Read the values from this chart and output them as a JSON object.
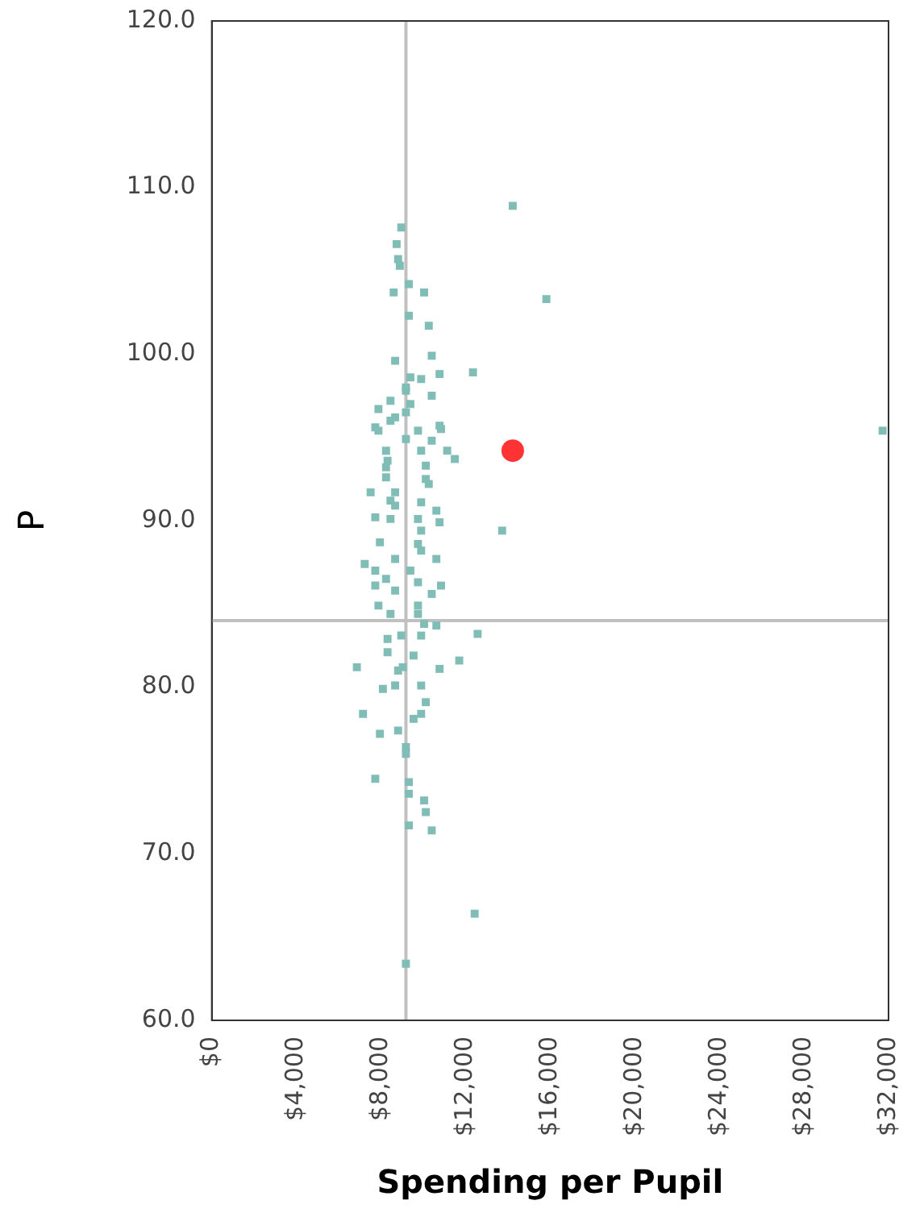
{
  "chart_data": {
    "type": "scatter",
    "xlabel": "Spending per Pupil",
    "ylabel": "P",
    "xlim": [
      0,
      32000
    ],
    "ylim": [
      60,
      120
    ],
    "xticks": [
      {
        "value": 0,
        "label": "$0"
      },
      {
        "value": 4000,
        "label": "$4,000"
      },
      {
        "value": 8000,
        "label": "$8,000"
      },
      {
        "value": 12000,
        "label": "$12,000"
      },
      {
        "value": 16000,
        "label": "$16,000"
      },
      {
        "value": 20000,
        "label": "$20,000"
      },
      {
        "value": 24000,
        "label": "$24,000"
      },
      {
        "value": 28000,
        "label": "$28,000"
      },
      {
        "value": 32000,
        "label": "$32,000"
      }
    ],
    "yticks": [
      {
        "value": 60,
        "label": "60.0"
      },
      {
        "value": 70,
        "label": "70.0"
      },
      {
        "value": 80,
        "label": "80.0"
      },
      {
        "value": 90,
        "label": "90.0"
      },
      {
        "value": 100,
        "label": "100.0"
      },
      {
        "value": 110,
        "label": "110.0"
      },
      {
        "value": 120,
        "label": "120.0"
      }
    ],
    "grid": false,
    "legend": false,
    "ref_lines": [
      {
        "axis": "x",
        "value": 9180,
        "color": "#c0c0c0"
      },
      {
        "axis": "y",
        "value": 84.0,
        "color": "#c0c0c0"
      }
    ],
    "series": [
      {
        "color": "#7fbdb6",
        "marker": "square",
        "x": [
          8960,
          8740,
          8810,
          8890,
          9320,
          8600,
          10040,
          9320,
          10260,
          10400,
          8670,
          12350,
          10770,
          9390,
          9900,
          9180,
          10400,
          9180,
          8450,
          9390,
          7880,
          9180,
          8450,
          10770,
          7730,
          8670,
          7880,
          9750,
          10840,
          9180,
          10400,
          11130,
          8240,
          9900,
          11490,
          8310,
          10120,
          8240,
          10120,
          8240,
          10260,
          8670,
          7510,
          8450,
          9900,
          10620,
          8670,
          7730,
          10770,
          8450,
          9750,
          13730,
          9900,
          7950,
          9750,
          9900,
          7230,
          8670,
          10620,
          7730,
          9390,
          8240,
          9750,
          10840,
          7730,
          8670,
          10400,
          7880,
          9750,
          9750,
          8450,
          10040,
          10620,
          9900,
          8310,
          12570,
          8960,
          8310,
          9540,
          11700,
          6860,
          9030,
          10770,
          8810,
          8090,
          8670,
          9900,
          10120,
          7150,
          9900,
          9540,
          7950,
          8810,
          9180,
          9180,
          7730,
          9320,
          9320,
          10040,
          10120,
          9320,
          10400,
          12430,
          9180,
          14230,
          15820,
          31720
        ],
        "values": [
          107.6,
          106.6,
          105.7,
          105.3,
          104.2,
          103.7,
          103.7,
          102.3,
          101.7,
          99.9,
          99.6,
          98.9,
          98.8,
          98.6,
          98.5,
          98.0,
          97.5,
          97.8,
          97.2,
          97.0,
          96.7,
          96.5,
          96.0,
          95.7,
          95.6,
          96.2,
          95.4,
          95.4,
          95.5,
          94.9,
          94.8,
          94.2,
          94.2,
          94.2,
          93.7,
          93.6,
          93.3,
          93.2,
          92.5,
          92.6,
          92.2,
          91.7,
          91.7,
          91.2,
          91.1,
          90.6,
          90.9,
          90.2,
          89.9,
          90.1,
          90.1,
          89.4,
          89.4,
          88.7,
          88.6,
          88.2,
          87.4,
          87.7,
          87.7,
          87.0,
          87.0,
          86.5,
          86.3,
          86.1,
          86.1,
          85.8,
          85.6,
          84.9,
          84.9,
          84.4,
          84.4,
          83.8,
          83.7,
          83.1,
          82.9,
          83.2,
          83.1,
          82.1,
          81.9,
          81.6,
          81.2,
          81.2,
          81.1,
          81.0,
          79.9,
          80.1,
          80.1,
          79.1,
          78.4,
          78.4,
          78.1,
          77.2,
          77.4,
          76.4,
          76.0,
          74.5,
          74.3,
          73.6,
          73.2,
          72.5,
          71.7,
          71.4,
          66.4,
          63.4,
          108.9,
          103.3,
          95.4
        ]
      },
      {
        "color": "#ff3333",
        "marker": "circle",
        "x": [
          14230
        ],
        "values": [
          94.2
        ]
      }
    ]
  }
}
